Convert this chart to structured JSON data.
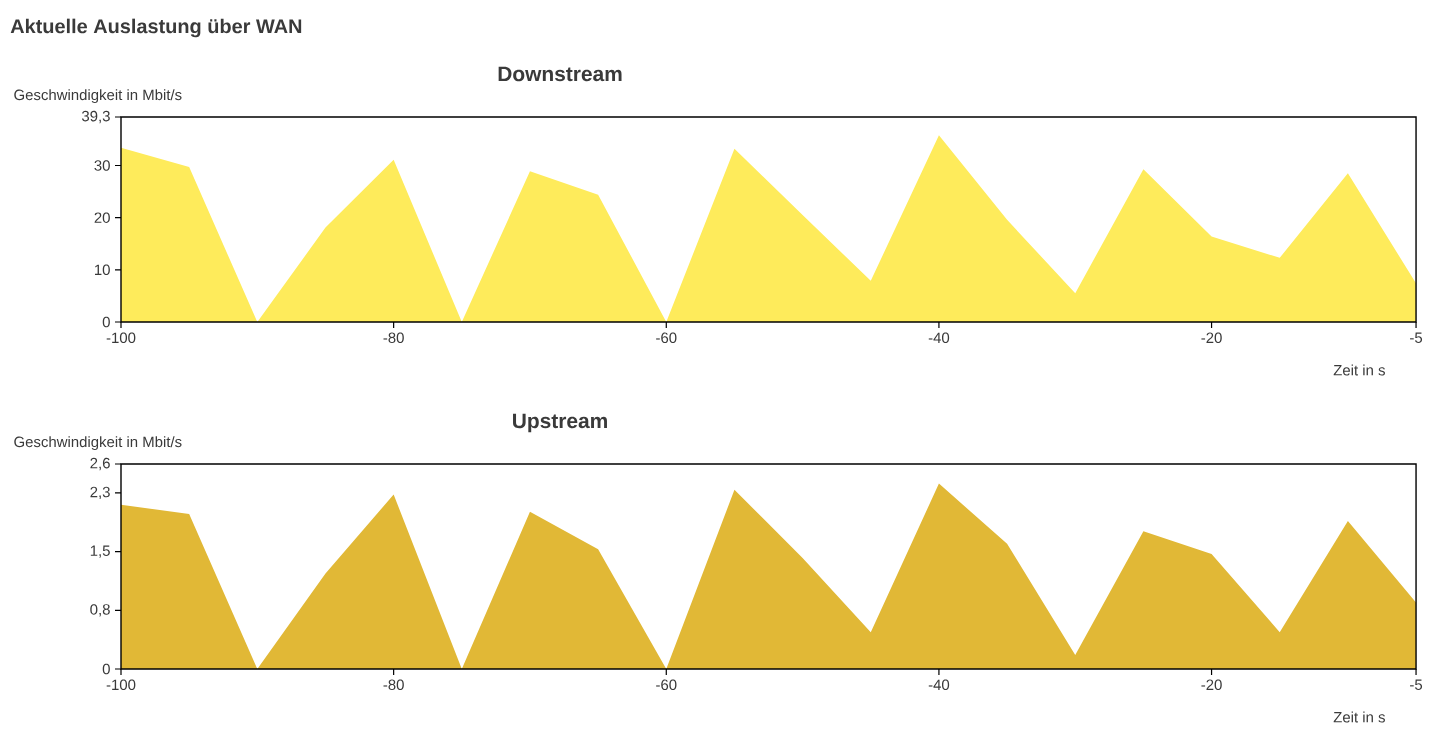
{
  "chart_data": [
    {
      "type": "area",
      "title": "Downstream",
      "annotations": [
        "Aktuelle Auslastung über WAN"
      ],
      "xlabel": "Zeit in s",
      "ylabel": "Geschwindigkeit in Mbit/s",
      "color": "#feeb5b",
      "x": [
        -100,
        -95,
        -90,
        -85,
        -80,
        -75,
        -70,
        -65,
        -60,
        -55,
        -50,
        -45,
        -40,
        -35,
        -30,
        -25,
        -20,
        -15,
        -10,
        -5
      ],
      "values": [
        33.4,
        29.7,
        0,
        18.1,
        31.1,
        0,
        28.9,
        24.4,
        0,
        33.2,
        20.5,
        7.9,
        35.8,
        19.6,
        5.5,
        29.3,
        16.4,
        12.3,
        28.5,
        7.4
      ],
      "xlim": [
        -100,
        -5
      ],
      "ylim": [
        0,
        39.3
      ],
      "xticks": [
        -100,
        -80,
        -60,
        -40,
        -20,
        -5
      ],
      "yticks": [
        0,
        10,
        20,
        30,
        {
          "value": 39.3,
          "label": "39,3"
        }
      ]
    },
    {
      "type": "area",
      "title": "Upstream",
      "xlabel": "Zeit in s",
      "ylabel": "Geschwindigkeit in Mbit/s",
      "color": "#e1b836",
      "x": [
        -100,
        -95,
        -90,
        -85,
        -80,
        -75,
        -70,
        -65,
        -60,
        -55,
        -50,
        -45,
        -40,
        -35,
        -30,
        -25,
        -20,
        -15,
        -10,
        -5
      ],
      "values": [
        2.1,
        1.98,
        0,
        1.22,
        2.23,
        0,
        2.01,
        1.53,
        0,
        2.29,
        1.42,
        0.47,
        2.37,
        1.6,
        0.18,
        1.76,
        1.47,
        0.47,
        1.89,
        0.85
      ],
      "xlim": [
        -100,
        -5
      ],
      "ylim": [
        0,
        2.62
      ],
      "xticks": [
        -100,
        -80,
        -60,
        -40,
        -20,
        -5
      ],
      "yticks": [
        0,
        {
          "value": 0.75,
          "label": "0,8"
        },
        {
          "value": 1.5,
          "label": "1,5"
        },
        {
          "value": 2.25,
          "label": "2,3"
        },
        {
          "value": 2.62,
          "label": "2,6"
        }
      ]
    }
  ]
}
